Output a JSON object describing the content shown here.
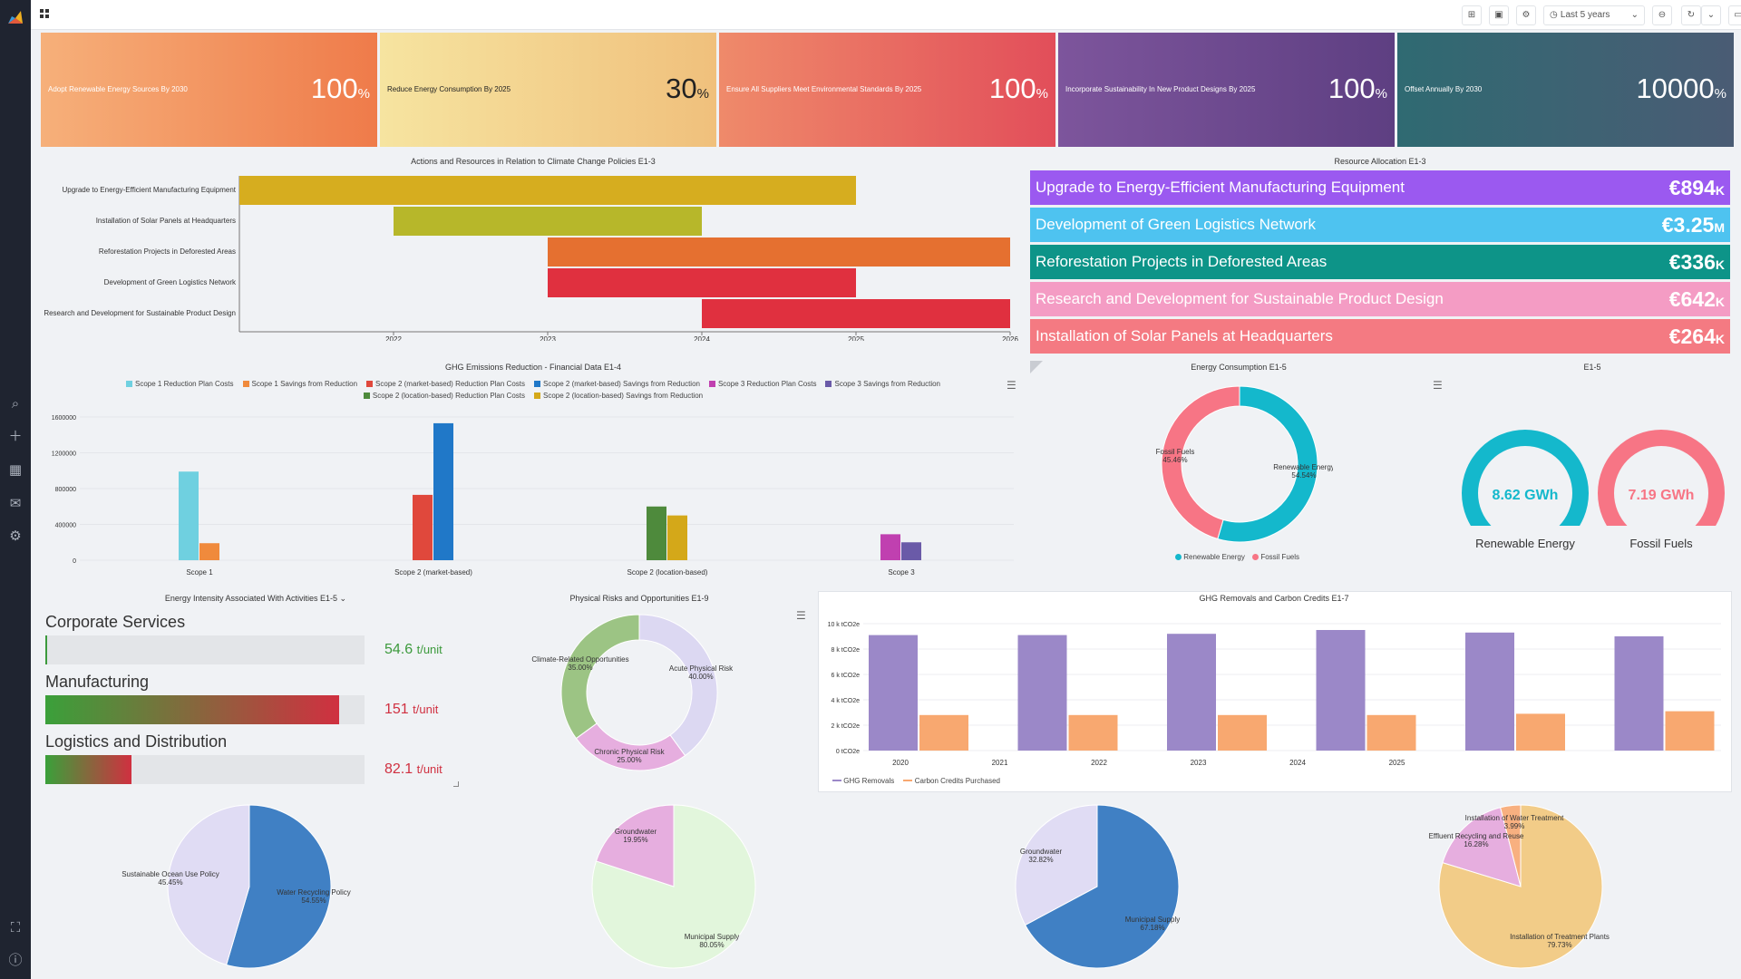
{
  "toolbar": {
    "time_range": "Last 5 years"
  },
  "kpis": [
    {
      "label": "Adopt Renewable Energy Sources By 2030",
      "value": "100",
      "unit": "%",
      "colors": [
        "#f6b07a",
        "#ef7b4a"
      ]
    },
    {
      "label": "Reduce Energy Consumption By 2025",
      "value": "30",
      "unit": "%",
      "colors": [
        "#f6e4a0",
        "#f0c07c"
      ]
    },
    {
      "label": "Ensure All Suppliers Meet Environmental Standards By 2025",
      "value": "100",
      "unit": "%",
      "colors": [
        "#ef8a6a",
        "#e24e5a"
      ]
    },
    {
      "label": "Incorporate Sustainability In New Product Designs By 2025",
      "value": "100",
      "unit": "%",
      "colors": [
        "#7d559c",
        "#5e3f82"
      ]
    },
    {
      "label": "Offset Annually By 2030",
      "value": "10000",
      "unit": "%",
      "colors": [
        "#2f6a72",
        "#4a5c74"
      ]
    }
  ],
  "actions": {
    "title": "Actions and Resources in Relation to Climate Change Policies E1-3",
    "rows": [
      {
        "label": "Upgrade to Energy-Efficient Manufacturing Equipment",
        "start": 2021,
        "end": 2025,
        "color": "#d6ad1f"
      },
      {
        "label": "Installation of Solar Panels at Headquarters",
        "start": 2022,
        "end": 2024,
        "color": "#b7b72a"
      },
      {
        "label": "Reforestation Projects in Deforested Areas",
        "start": 2023,
        "end": 2026,
        "color": "#e57030"
      },
      {
        "label": "Development of Green Logistics Network",
        "start": 2023,
        "end": 2025,
        "color": "#e0303f"
      },
      {
        "label": "Research and Development for Sustainable Product Design",
        "start": 2024,
        "end": 2026,
        "color": "#e0303f"
      }
    ],
    "ticks": [
      "2022",
      "2023",
      "2024",
      "2025",
      "2026"
    ]
  },
  "resource": {
    "title": "Resource Allocation E1-3",
    "items": [
      {
        "label": "Upgrade to Energy-Efficient Manufacturing Equipment",
        "value": "€894",
        "unit": "K",
        "color": "#9b59f0"
      },
      {
        "label": "Development of Green Logistics Network",
        "value": "€3.25",
        "unit": "M",
        "color": "#4ec3f0"
      },
      {
        "label": "Reforestation Projects in Deforested Areas",
        "value": "€336",
        "unit": "K",
        "color": "#0d9488"
      },
      {
        "label": "Research and Development for Sustainable Product Design",
        "value": "€642",
        "unit": "K",
        "color": "#f49cc4"
      },
      {
        "label": "Installation of Solar Panels at Headquarters",
        "value": "€264",
        "unit": "K",
        "color": "#f47a82"
      }
    ]
  },
  "ghg": {
    "title": "GHG Emissions Reduction - Financial Data E1-4",
    "legend": [
      {
        "name": "Scope 1 Reduction Plan Costs",
        "color": "#6fd0e0"
      },
      {
        "name": "Scope 1 Savings from Reduction",
        "color": "#f08a3c"
      },
      {
        "name": "Scope 2 (market-based) Reduction Plan Costs",
        "color": "#e0483c"
      },
      {
        "name": "Scope 2 (market-based) Savings from Reduction",
        "color": "#2078c8"
      },
      {
        "name": "Scope 3 Reduction Plan Costs",
        "color": "#c040b0"
      },
      {
        "name": "Scope 3 Savings from Reduction",
        "color": "#6a5aa8"
      },
      {
        "name": "Scope 2 (location-based) Reduction Plan Costs",
        "color": "#4e8a3c"
      },
      {
        "name": "Scope 2 (location-based) Savings from Reduction",
        "color": "#d4a819"
      }
    ],
    "y_ticks": [
      "0",
      "400000",
      "800000",
      "1200000",
      "1600000"
    ],
    "categories": [
      "Scope 1",
      "Scope 2 (market-based)",
      "Scope 2 (location-based)",
      "Scope 3"
    ]
  },
  "chart_data": [
    {
      "type": "bar",
      "title": "GHG Emissions Reduction - Financial Data E1-4",
      "categories": [
        "Scope 1",
        "Scope 2 (market-based)",
        "Scope 2 (location-based)",
        "Scope 3"
      ],
      "ylim": [
        0,
        1600000
      ],
      "bars": [
        {
          "category": 0,
          "values": [
            990000,
            190000
          ],
          "colors": [
            "#6fd0e0",
            "#f08a3c"
          ]
        },
        {
          "category": 1,
          "values": [
            730000,
            1530000
          ],
          "colors": [
            "#e0483c",
            "#2078c8"
          ]
        },
        {
          "category": 2,
          "values": [
            600000,
            500000
          ],
          "colors": [
            "#4e8a3c",
            "#d4a819"
          ]
        },
        {
          "category": 3,
          "values": [
            290000,
            200000
          ],
          "colors": [
            "#c040b0",
            "#6a5aa8"
          ]
        }
      ]
    },
    {
      "type": "pie",
      "title": "Energy Consumption E1-5",
      "slices": [
        {
          "name": "Renewable Energy",
          "value": 54.54,
          "label": "54.54%",
          "color": "#14b8cc"
        },
        {
          "name": "Fossil Fuels",
          "value": 45.46,
          "label": "45.46%",
          "color": "#f77585"
        }
      ]
    },
    {
      "type": "pie",
      "title": "Physical Risks and Opportunities E1-9",
      "slices": [
        {
          "name": "Acute Physical Risk",
          "value": 40.0,
          "label": "40.00%",
          "color": "#dcd8f2"
        },
        {
          "name": "Chronic Physical Risk",
          "value": 25.0,
          "label": "25.00%",
          "color": "#e6aedf"
        },
        {
          "name": "Climate-Related Opportunities",
          "value": 35.0,
          "label": "35.00%",
          "color": "#9cc484"
        }
      ]
    },
    {
      "type": "bar",
      "title": "GHG Removals and Carbon Credits E1-7",
      "categories": [
        "2020",
        "2021",
        "2022",
        "2023",
        "2024",
        "2025"
      ],
      "ylim": [
        0,
        10
      ],
      "series": [
        {
          "name": "GHG Removals",
          "values": [
            9.1,
            9.1,
            9.2,
            9.5,
            9.3,
            9.0
          ],
          "color": "#9b88c8"
        },
        {
          "name": "Carbon Credits Purchased",
          "values": [
            2.8,
            2.8,
            2.8,
            2.8,
            2.9,
            3.1
          ],
          "color": "#f8a870"
        }
      ]
    },
    {
      "type": "pie",
      "slices": [
        {
          "name": "Water Recycling Policy",
          "value": 54.55,
          "label": "54.55%",
          "color": "#4080c4"
        },
        {
          "name": "Sustainable Ocean Use Policy",
          "value": 45.45,
          "label": "45.45%",
          "color": "#e0dcf4"
        }
      ]
    },
    {
      "type": "pie",
      "slices": [
        {
          "name": "Municipal Supply",
          "value": 80.05,
          "label": "80.05%",
          "color": "#e2f6dc"
        },
        {
          "name": "Groundwater",
          "value": 19.95,
          "label": "19.95%",
          "color": "#e6aedf"
        }
      ]
    },
    {
      "type": "pie",
      "slices": [
        {
          "name": "Municipal Supply",
          "value": 67.18,
          "label": "67.18%",
          "color": "#4080c4"
        },
        {
          "name": "Groundwater",
          "value": 32.82,
          "label": "32.82%",
          "color": "#e0dcf4"
        }
      ]
    },
    {
      "type": "pie",
      "slices": [
        {
          "name": "Installation of Treatment Plants",
          "value": 79.73,
          "label": "79.73%",
          "color": "#f2cc88"
        },
        {
          "name": "Effluent Recycling and Reuse",
          "value": 16.28,
          "label": "16.28%",
          "color": "#e6aedf"
        },
        {
          "name": "Installation of Water Treatment",
          "value": 3.99,
          "label": "3.99%",
          "color": "#f8b080"
        }
      ]
    }
  ],
  "energy": {
    "title": "Energy Consumption E1-5",
    "slice1": "Renewable Energy",
    "pct1": "54.54%",
    "slice2": "Fossil Fuels",
    "pct2": "45.46%"
  },
  "e15": {
    "title": "E1-5",
    "g1_value": "8.62 GWh",
    "g1_label": "Renewable Energy",
    "g1_color": "#14b8cc",
    "g1_fill": 1.0,
    "g2_value": "7.19 GWh",
    "g2_label": "Fossil Fuels",
    "g2_color": "#f77585",
    "g2_fill": 1.0
  },
  "intensity": {
    "title": "Energy Intensity Associated With Activities E1-5",
    "rows": [
      {
        "label": "Corporate Services",
        "value": "54.6",
        "unit": "t/unit",
        "fill": 0.005,
        "color": "#3c9a3c"
      },
      {
        "label": "Manufacturing",
        "value": "151",
        "unit": "t/unit",
        "fill": 0.92,
        "color": "#d03040"
      },
      {
        "label": "Logistics and Distribution",
        "value": "82.1",
        "unit": "t/unit",
        "fill": 0.27,
        "color": "#d03040"
      }
    ]
  },
  "risks": {
    "title": "Physical Risks and Opportunities E1-9",
    "s1": "Acute Physical Risk",
    "p1": "40.00%",
    "s2": "Chronic Physical Risk",
    "p2": "25.00%",
    "s3": "Climate-Related Opportunities",
    "p3": "35.00%"
  },
  "removals": {
    "title": "GHG Removals and Carbon Credits E1-7",
    "y_ticks": [
      "0 tCO2e",
      "2 k tCO2e",
      "4 k tCO2e",
      "6 k tCO2e",
      "8 k tCO2e",
      "10 k tCO2e"
    ],
    "x_ticks": [
      "2020",
      "2021",
      "2022",
      "2023",
      "2024",
      "2025"
    ],
    "legend1": "GHG Removals",
    "legend2": "Carbon Credits Purchased"
  },
  "pies": {
    "p1": {
      "a": "Water Recycling Policy",
      "ap": "54.55%",
      "b": "Sustainable Ocean Use Policy",
      "bp": "45.45%"
    },
    "p2": {
      "a": "Municipal Supply",
      "ap": "80.05%",
      "b": "Groundwater",
      "bp": "19.95%"
    },
    "p3": {
      "a": "Municipal Supply",
      "ap": "67.18%",
      "b": "Groundwater",
      "bp": "32.82%"
    },
    "p4": {
      "a": "Installation of Treatment Plants",
      "ap": "79.73%",
      "b": "Effluent Recycling and Reuse",
      "bp": "16.28%",
      "c": "Installation of Water Treatment",
      "cp": "3.99%"
    }
  }
}
